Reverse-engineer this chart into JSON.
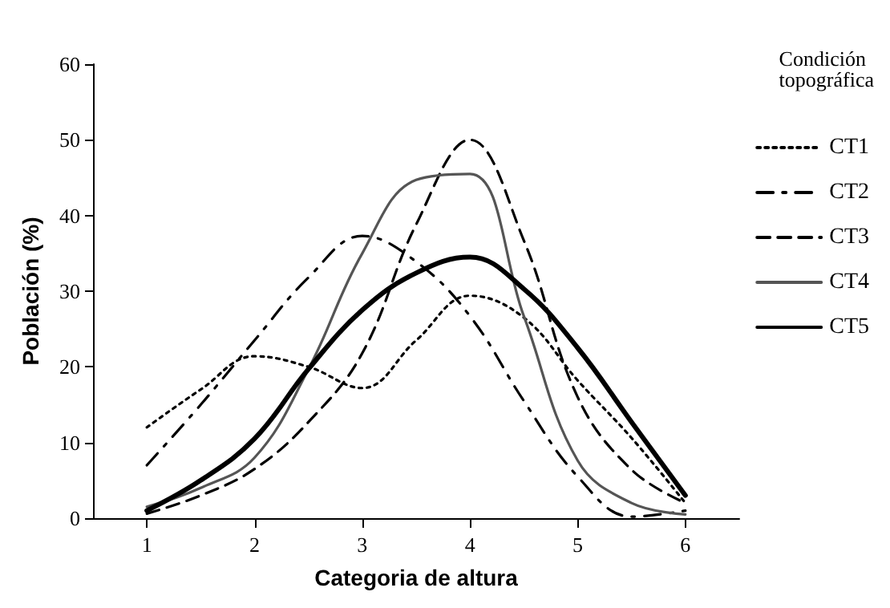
{
  "chart_data": {
    "type": "line",
    "xlabel": "Categoria de altura",
    "ylabel": "Población (%)",
    "legend_title": "Condición\ntopográfica",
    "legend": "right",
    "grid": false,
    "marker": "none",
    "xlim": [
      0.5,
      6.5
    ],
    "xticks": [
      1,
      2,
      3,
      4,
      5,
      6
    ],
    "ylim": [
      0,
      60
    ],
    "yticks": [
      0,
      10,
      20,
      30,
      40,
      50,
      60
    ],
    "x": [
      1,
      1.5,
      2,
      2.5,
      3,
      3.5,
      4,
      4.5,
      5,
      5.5,
      6
    ],
    "series": [
      {
        "name": "CT1",
        "color": "#000000",
        "line_style": "dotted",
        "values": [
          12,
          17,
          21.4,
          20,
          17.2,
          23.5,
          29.4,
          26.5,
          18.2,
          10.6,
          2
        ]
      },
      {
        "name": "CT2",
        "color": "#000000",
        "line_style": "dashdot",
        "values": [
          7,
          15,
          23.5,
          31.8,
          37.3,
          33.9,
          26.7,
          15.5,
          5.5,
          0.2,
          1
        ]
      },
      {
        "name": "CT3",
        "color": "#000000",
        "line_style": "dashed",
        "values": [
          0.6,
          3,
          6.5,
          12.7,
          21.8,
          38.8,
          50,
          36.7,
          16,
          6.4,
          2
        ]
      },
      {
        "name": "CT4",
        "color": "#555555",
        "line_style": "solid",
        "values": [
          1.5,
          4,
          8,
          19.7,
          35,
          44.7,
          45.5,
          26.7,
          7.6,
          2,
          0.5
        ]
      },
      {
        "name": "CT5",
        "color": "#000000",
        "line_style": "solid",
        "values": [
          1,
          5,
          10.5,
          19.7,
          27.5,
          32.4,
          34.5,
          30.3,
          22.5,
          12.7,
          3
        ]
      }
    ]
  }
}
